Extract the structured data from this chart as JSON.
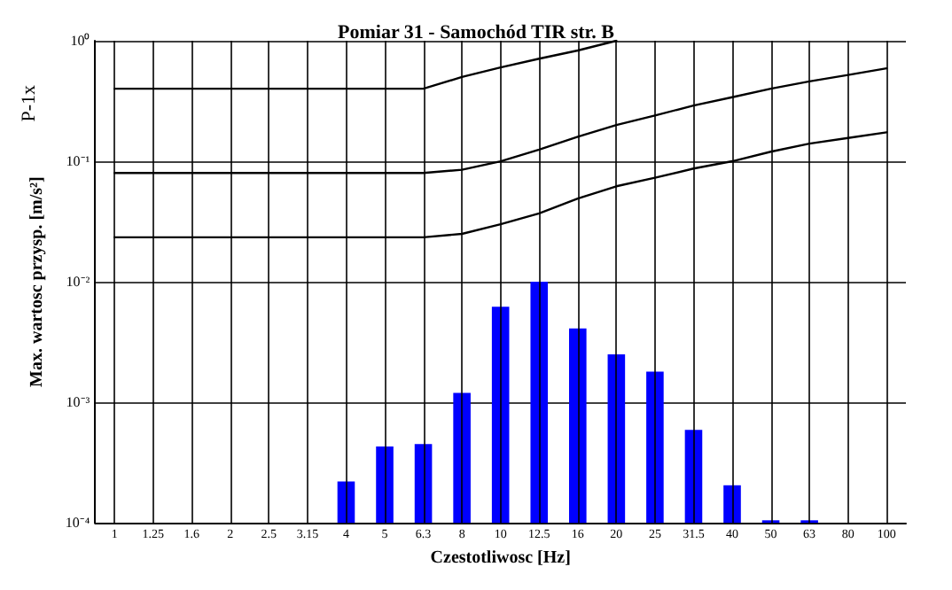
{
  "chart_data": {
    "type": "bar",
    "title": "Pomiar 31 - Samochód TIR str. B",
    "xlabel": "Czestotliwosc [Hz]",
    "ylabel": "Max. wartosc przysp. [m/s²]",
    "annotations": [
      "P-1x"
    ],
    "categories": [
      "1",
      "1.25",
      "1.6",
      "2",
      "2.5",
      "3.15",
      "4",
      "5",
      "6.3",
      "8",
      "10",
      "12.5",
      "16",
      "20",
      "25",
      "31.5",
      "40",
      "50",
      "63",
      "80",
      "100"
    ],
    "series": [
      {
        "color": "#0000ff",
        "values": [
          null,
          null,
          null,
          null,
          null,
          null,
          0.00022,
          0.00043,
          0.00045,
          0.0012,
          0.0062,
          0.01,
          0.0041,
          0.0025,
          0.0018,
          0.00059,
          0.000205,
          0.000105,
          0.000105,
          null,
          null
        ]
      },
      {
        "type": "line",
        "color": "#000000",
        "values": [
          0.4,
          0.4,
          0.4,
          0.4,
          0.4,
          0.4,
          0.4,
          0.4,
          0.4,
          0.5,
          0.6,
          0.71,
          0.83,
          1.0,
          null,
          null,
          null,
          null,
          null,
          null,
          null
        ]
      },
      {
        "type": "line",
        "color": "#000000",
        "values": [
          0.08,
          0.08,
          0.08,
          0.08,
          0.08,
          0.08,
          0.08,
          0.08,
          0.08,
          0.085,
          0.1,
          0.125,
          0.16,
          0.2,
          0.24,
          0.29,
          0.34,
          0.4,
          0.46,
          0.52,
          0.59
        ]
      },
      {
        "type": "line",
        "color": "#000000",
        "values": [
          0.0234,
          0.0234,
          0.0234,
          0.0234,
          0.0234,
          0.0234,
          0.0234,
          0.0234,
          0.0234,
          0.025,
          0.03,
          0.037,
          0.049,
          0.062,
          0.073,
          0.087,
          0.1,
          0.12,
          0.14,
          0.156,
          0.174
        ]
      }
    ],
    "log": "y",
    "ylim": [
      0.0001,
      1
    ],
    "yticks": [
      {
        "value": 0.0001,
        "label": "10⁻⁴"
      },
      {
        "value": 0.001,
        "label": "10⁻³"
      },
      {
        "value": 0.01,
        "label": "10⁻²"
      },
      {
        "value": 0.1,
        "label": "10⁻¹"
      },
      {
        "value": 1,
        "label": "10⁰"
      }
    ],
    "grid": true,
    "marker": "none",
    "line_style": "solid"
  }
}
